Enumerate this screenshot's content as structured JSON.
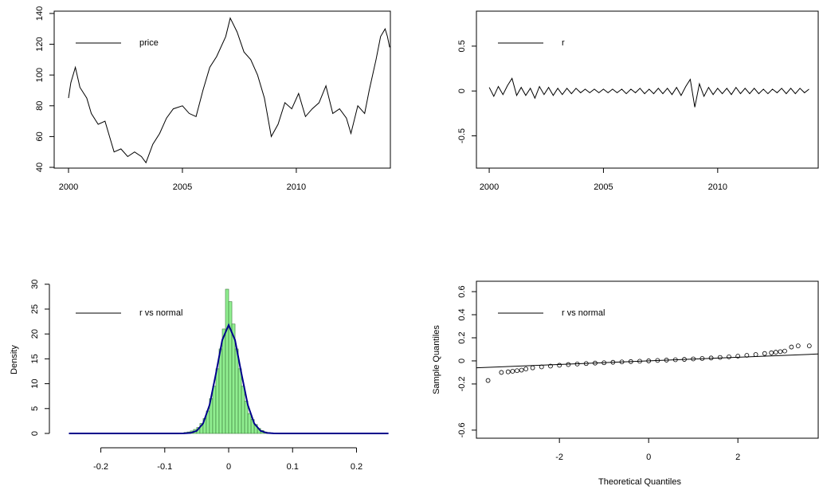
{
  "chart_data": [
    {
      "type": "line",
      "legend": {
        "text": "price",
        "color": "#000000"
      },
      "x": [
        2000.0,
        2000.1,
        2000.3,
        2000.5,
        2000.8,
        2001.0,
        2001.3,
        2001.6,
        2001.8,
        2002.0,
        2002.3,
        2002.6,
        2002.9,
        2003.2,
        2003.4,
        2003.7,
        2004.0,
        2004.3,
        2004.6,
        2005.0,
        2005.3,
        2005.6,
        2005.9,
        2006.2,
        2006.5,
        2006.9,
        2007.1,
        2007.4,
        2007.7,
        2008.0,
        2008.3,
        2008.6,
        2008.9,
        2009.2,
        2009.5,
        2009.8,
        2010.1,
        2010.4,
        2010.7,
        2011.0,
        2011.3,
        2011.6,
        2011.9,
        2012.2,
        2012.4,
        2012.7,
        2013.0,
        2013.2,
        2013.5,
        2013.7,
        2013.9,
        2014.0,
        2014.1
      ],
      "series": [
        {
          "color": "#000000",
          "values": [
            85,
            95,
            105,
            92,
            85,
            75,
            68,
            70,
            60,
            50,
            52,
            47,
            50,
            47,
            43,
            55,
            62,
            72,
            78,
            80,
            75,
            73,
            90,
            105,
            112,
            125,
            137,
            128,
            115,
            110,
            100,
            85,
            60,
            68,
            82,
            78,
            88,
            73,
            78,
            82,
            93,
            75,
            78,
            72,
            62,
            80,
            75,
            90,
            110,
            125,
            130,
            125,
            118
          ]
        }
      ],
      "xlim": [
        1999.37,
        2014.13
      ],
      "ylim": [
        39.5,
        141.5
      ],
      "xticks": [
        2000,
        2005,
        2010
      ],
      "yticks": [
        40,
        60,
        80,
        100,
        120,
        140
      ]
    },
    {
      "type": "line",
      "legend": {
        "text": "r",
        "color": "#000000"
      },
      "x": [
        2000.0,
        2000.2,
        2000.4,
        2000.6,
        2000.8,
        2001.0,
        2001.2,
        2001.4,
        2001.6,
        2001.8,
        2002.0,
        2002.2,
        2002.4,
        2002.6,
        2002.8,
        2003.0,
        2003.2,
        2003.4,
        2003.6,
        2003.8,
        2004.0,
        2004.2,
        2004.4,
        2004.6,
        2004.8,
        2005.0,
        2005.2,
        2005.4,
        2005.6,
        2005.8,
        2006.0,
        2006.2,
        2006.4,
        2006.6,
        2006.8,
        2007.0,
        2007.2,
        2007.4,
        2007.6,
        2007.8,
        2008.0,
        2008.2,
        2008.4,
        2008.6,
        2008.8,
        2009.0,
        2009.2,
        2009.4,
        2009.6,
        2009.8,
        2010.0,
        2010.2,
        2010.4,
        2010.6,
        2010.8,
        2011.0,
        2011.2,
        2011.4,
        2011.6,
        2011.8,
        2012.0,
        2012.2,
        2012.4,
        2012.6,
        2012.8,
        2013.0,
        2013.2,
        2013.4,
        2013.6,
        2013.8,
        2014.0
      ],
      "series": [
        {
          "color": "#000000",
          "values": [
            0.04,
            -0.06,
            0.05,
            -0.04,
            0.06,
            0.14,
            -0.05,
            0.04,
            -0.05,
            0.03,
            -0.08,
            0.05,
            -0.04,
            0.04,
            -0.05,
            0.03,
            -0.04,
            0.03,
            -0.03,
            0.03,
            -0.02,
            0.02,
            -0.02,
            0.02,
            -0.02,
            0.02,
            -0.02,
            0.02,
            -0.02,
            0.02,
            -0.03,
            0.02,
            -0.02,
            0.03,
            -0.03,
            0.02,
            -0.03,
            0.03,
            -0.03,
            0.03,
            -0.04,
            0.04,
            -0.05,
            0.05,
            0.13,
            -0.18,
            0.08,
            -0.06,
            0.04,
            -0.04,
            0.03,
            -0.03,
            0.03,
            -0.04,
            0.04,
            -0.03,
            0.03,
            -0.03,
            0.03,
            -0.03,
            0.02,
            -0.03,
            0.02,
            -0.02,
            0.03,
            -0.03,
            0.03,
            -0.03,
            0.03,
            -0.02,
            0.02
          ]
        }
      ],
      "xlim": [
        1999.44,
        2014.4
      ],
      "ylim": [
        -0.86,
        0.89
      ],
      "xticks": [
        2000,
        2005,
        2010
      ],
      "yticks": [
        -0.5,
        0.0,
        0.5
      ]
    },
    {
      "type": "histogram",
      "legend": {
        "text": "r vs normal",
        "color": "#000000"
      },
      "ylabel": "Density",
      "bins": [
        -0.07,
        -0.065,
        -0.06,
        -0.055,
        -0.05,
        -0.045,
        -0.04,
        -0.035,
        -0.03,
        -0.025,
        -0.02,
        -0.015,
        -0.01,
        -0.005,
        0,
        0.005,
        0.01,
        0.015,
        0.02,
        0.025,
        0.03,
        0.035,
        0.04,
        0.045,
        0.05,
        0.055,
        0.06,
        0.065
      ],
      "values": [
        0.2,
        0.3,
        0.5,
        0.8,
        1.2,
        2,
        3,
        4.5,
        7,
        9.5,
        13,
        17,
        21,
        29,
        26.5,
        22,
        17,
        13,
        9.5,
        6.5,
        4,
        2.8,
        1.8,
        1,
        0.6,
        0.3,
        0.2
      ],
      "color": "#90ee90",
      "edge_color": "#3a7a3a",
      "curve": {
        "color": "#00008b",
        "x": [
          -0.25,
          -0.1,
          -0.08,
          -0.07,
          -0.06,
          -0.05,
          -0.04,
          -0.03,
          -0.02,
          -0.01,
          0,
          0.01,
          0.02,
          0.03,
          0.04,
          0.05,
          0.06,
          0.07,
          0.08,
          0.1,
          0.25
        ],
        "values": [
          0,
          0,
          0,
          0.01,
          0.1,
          0.52,
          2.0,
          5.7,
          12.0,
          18.8,
          21.8,
          18.8,
          12.0,
          5.7,
          2.0,
          0.52,
          0.1,
          0.01,
          0,
          0,
          0
        ]
      },
      "xlim": [
        -0.273,
        0.253
      ],
      "ylim": [
        -0.96,
        30.6
      ],
      "xticks": [
        -0.2,
        -0.1,
        0.0,
        0.1,
        0.2
      ],
      "yticks": [
        0,
        5,
        10,
        15,
        20,
        25,
        30
      ]
    },
    {
      "type": "scatter",
      "legend": {
        "text": "r vs normal",
        "color": "#000000"
      },
      "xlabel": "Theoretical Quantiles",
      "ylabel": "Sample Quantiles",
      "x": [
        -3.6,
        -3.3,
        -3.15,
        -3.05,
        -2.95,
        -2.85,
        -2.75,
        -2.6,
        -2.4,
        -2.2,
        -2.0,
        -1.8,
        -1.6,
        -1.4,
        -1.2,
        -1.0,
        -0.8,
        -0.6,
        -0.4,
        -0.2,
        0,
        0.2,
        0.4,
        0.6,
        0.8,
        1.0,
        1.2,
        1.4,
        1.6,
        1.8,
        2.0,
        2.2,
        2.4,
        2.6,
        2.75,
        2.85,
        2.95,
        3.05,
        3.2,
        3.35,
        3.6
      ],
      "values": [
        -0.17,
        -0.1,
        -0.095,
        -0.09,
        -0.085,
        -0.08,
        -0.07,
        -0.06,
        -0.052,
        -0.045,
        -0.038,
        -0.032,
        -0.027,
        -0.023,
        -0.019,
        -0.016,
        -0.012,
        -0.009,
        -0.006,
        -0.003,
        0.0,
        0.004,
        0.007,
        0.01,
        0.013,
        0.017,
        0.021,
        0.025,
        0.03,
        0.035,
        0.041,
        0.048,
        0.055,
        0.064,
        0.07,
        0.075,
        0.08,
        0.085,
        0.12,
        0.13,
        0.13
      ],
      "color": "#000000",
      "reference_line": {
        "x": [
          -3.86,
          3.8
        ],
        "values": [
          -0.06,
          0.06
        ]
      },
      "xlim": [
        -3.86,
        3.8
      ],
      "ylim": [
        -0.67,
        0.69
      ],
      "xticks": [
        -2,
        0,
        2
      ],
      "yticks": [
        -0.6,
        -0.2,
        0.0,
        0.2,
        0.4,
        0.6
      ]
    }
  ]
}
